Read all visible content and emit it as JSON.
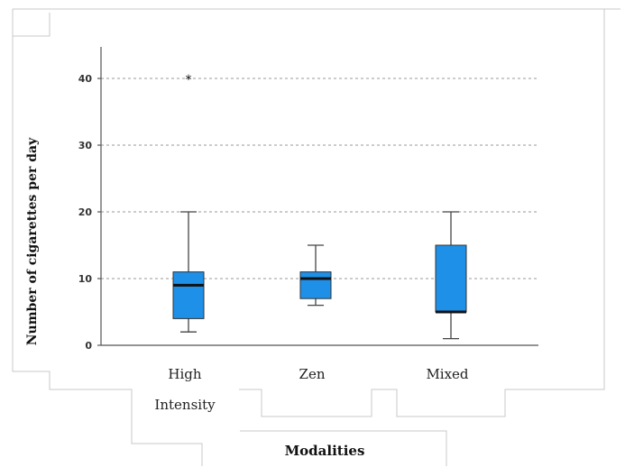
{
  "chart_data": {
    "type": "box",
    "ylabel": "Number of cigarettes per day",
    "xlabel": "Modalities",
    "ylim": [
      0,
      45
    ],
    "yticks": [
      0,
      10,
      20,
      30,
      40
    ],
    "grid": "horizontal-dashed",
    "box_color": "#1e90e8",
    "categories": [
      {
        "label_lines": [
          "High",
          "Intensity"
        ],
        "min": 2,
        "q1": 4,
        "median": 9,
        "q3": 11,
        "max": 20,
        "outliers": [
          40
        ]
      },
      {
        "label_lines": [
          "Zen"
        ],
        "min": 6,
        "q1": 7,
        "median": 10,
        "q3": 11,
        "max": 15,
        "outliers": []
      },
      {
        "label_lines": [
          "Mixed"
        ],
        "min": 1,
        "q1": 5,
        "median": 5,
        "q3": 15,
        "max": 20,
        "outliers": []
      }
    ]
  }
}
